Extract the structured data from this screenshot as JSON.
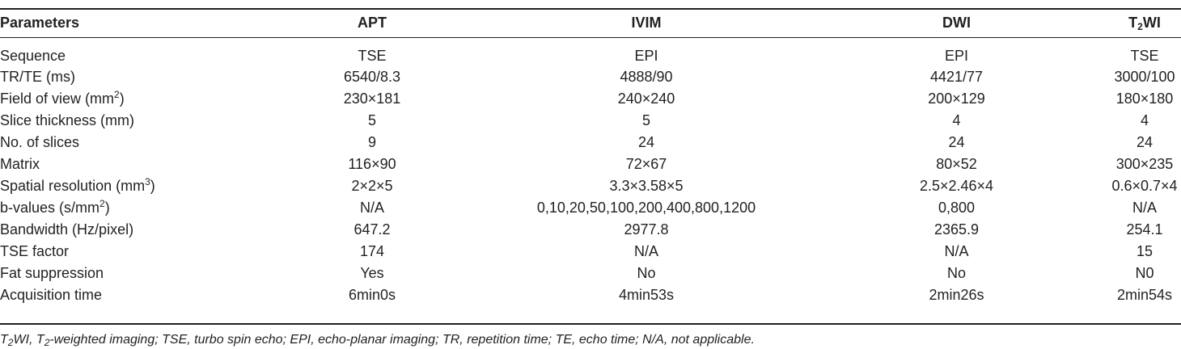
{
  "header": {
    "parameters": "Parameters",
    "apt": "APT",
    "ivim": "IVIM",
    "dwi": "DWI",
    "t2wi_base": "T",
    "t2wi_sub": "2",
    "t2wi_tail": "WI"
  },
  "rows": [
    {
      "label": "Sequence",
      "apt": "TSE",
      "ivim": "EPI",
      "dwi": "EPI",
      "t2wi": "TSE"
    },
    {
      "label": "TR/TE (ms)",
      "apt": "6540/8.3",
      "ivim": "4888/90",
      "dwi": "4421/77",
      "t2wi": "3000/100"
    },
    {
      "label": "Field of view (mm",
      "label_sup": "2",
      "label_tail": ")",
      "apt": "230×181",
      "ivim": "240×240",
      "dwi": "200×129",
      "t2wi": "180×180"
    },
    {
      "label": "Slice thickness (mm)",
      "apt": "5",
      "ivim": "5",
      "dwi": "4",
      "t2wi": "4"
    },
    {
      "label": "No. of slices",
      "apt": "9",
      "ivim": "24",
      "dwi": "24",
      "t2wi": "24"
    },
    {
      "label": "Matrix",
      "apt": "116×90",
      "ivim": "72×67",
      "dwi": "80×52",
      "t2wi": "300×235"
    },
    {
      "label": "Spatial resolution (mm",
      "label_sup": "3",
      "label_tail": ")",
      "apt": "2×2×5",
      "ivim": "3.3×3.58×5",
      "dwi": "2.5×2.46×4",
      "t2wi": "0.6×0.7×4"
    },
    {
      "label": "b-values (s/mm",
      "label_sup": "2",
      "label_tail": ")",
      "apt": "N/A",
      "ivim": "0,10,20,50,100,200,400,800,1200",
      "dwi": "0,800",
      "t2wi": "N/A"
    },
    {
      "label": "Bandwidth (Hz/pixel)",
      "apt": "647.2",
      "ivim": "2977.8",
      "dwi": "2365.9",
      "t2wi": "254.1"
    },
    {
      "label": "TSE factor",
      "apt": "174",
      "ivim": "N/A",
      "dwi": "N/A",
      "t2wi": "15"
    },
    {
      "label": "Fat suppression",
      "apt": "Yes",
      "ivim": "No",
      "dwi": "No",
      "t2wi": "N0"
    },
    {
      "label": "Acquisition time",
      "apt": "6min0s",
      "ivim": "4min53s",
      "dwi": "2min26s",
      "t2wi": "2min54s"
    }
  ],
  "footnote": {
    "t_base": "T",
    "t_sub1": "2",
    "part1": "WI, T",
    "t_sub2": "2",
    "part2": "-weighted imaging; TSE, turbo spin echo; EPI, echo-planar imaging; TR, repetition time; TE, echo time; N/A, not applicable."
  }
}
